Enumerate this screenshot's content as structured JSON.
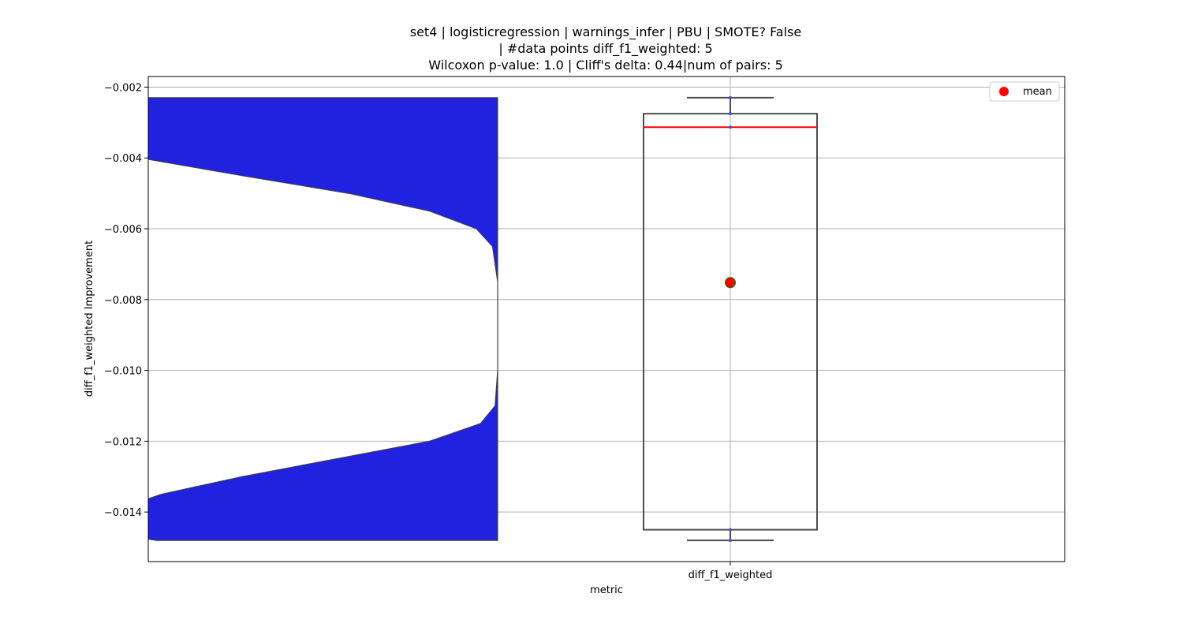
{
  "chart_data": {
    "type": "violin+box",
    "title_lines": [
      "set4 | logisticregression | warnings_infer | PBU | SMOTE? False",
      "| #data points diff_f1_weighted: 5",
      "Wilcoxon p-value: 1.0 | Cliff's delta: 0.44|num of pairs: 5"
    ],
    "xlabel": "metric",
    "ylabel": "diff_f1_weighted Improvement",
    "categories": [
      "diff_f1_weighted"
    ],
    "ylim": [
      -0.0154,
      -0.0017
    ],
    "yticks": [
      -0.002,
      -0.004,
      -0.006,
      -0.008,
      -0.01,
      -0.012,
      -0.014
    ],
    "ytick_labels": [
      "−0.002",
      "−0.004",
      "−0.006",
      "−0.008",
      "−0.010",
      "−0.012",
      "−0.014"
    ],
    "grid": true,
    "legend": {
      "placement": "top-right",
      "entries": [
        {
          "label": "mean",
          "color": "#ff0000",
          "marker": "circle"
        }
      ]
    },
    "violin": {
      "color": "#2121e0",
      "y_min": -0.0148,
      "y_max": -0.0023,
      "half_width_profile": [
        {
          "y": -0.0023,
          "w": 1.0
        },
        {
          "y": -0.0035,
          "w": 1.0
        },
        {
          "y": -0.004,
          "w": 0.84
        },
        {
          "y": -0.0045,
          "w": 0.6
        },
        {
          "y": -0.005,
          "w": 0.35
        },
        {
          "y": -0.0055,
          "w": 0.16
        },
        {
          "y": -0.006,
          "w": 0.05
        },
        {
          "y": -0.0065,
          "w": 0.012
        },
        {
          "y": -0.0075,
          "w": 0.0
        },
        {
          "y": -0.01,
          "w": 0.0
        },
        {
          "y": -0.011,
          "w": 0.006
        },
        {
          "y": -0.0115,
          "w": 0.04
        },
        {
          "y": -0.012,
          "w": 0.16
        },
        {
          "y": -0.0125,
          "w": 0.38
        },
        {
          "y": -0.013,
          "w": 0.6
        },
        {
          "y": -0.0135,
          "w": 0.79
        },
        {
          "y": -0.014,
          "w": 0.91
        },
        {
          "y": -0.0145,
          "w": 0.97
        },
        {
          "y": -0.0148,
          "w": 0.8
        }
      ]
    },
    "box": {
      "q1": -0.0145,
      "q3": -0.00275,
      "median": -0.00313,
      "whisker_low": -0.0148,
      "whisker_high": -0.0023,
      "mean": -0.00752,
      "points": [
        -0.0148,
        -0.0145,
        -0.00313,
        -0.00275,
        -0.0023
      ],
      "median_color": "#ff0000",
      "mean_color": "#ff0000",
      "mean_edge_color": "#008000"
    }
  }
}
